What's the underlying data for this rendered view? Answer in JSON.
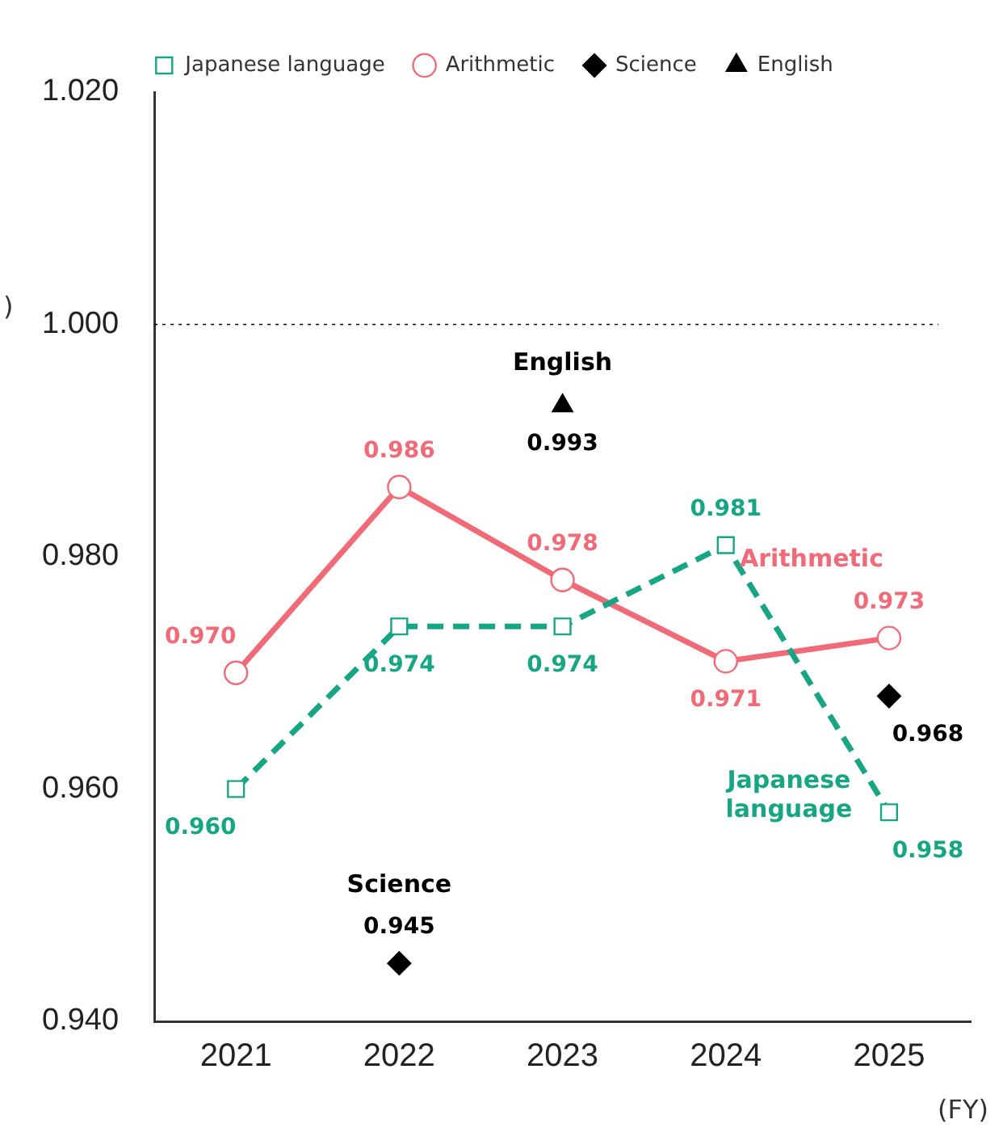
{
  "chart_data": {
    "type": "line",
    "xlabel": "(FY)",
    "ylabel": ")",
    "categories": [
      "2021",
      "2022",
      "2023",
      "2024",
      "2025"
    ],
    "series": [
      {
        "name": "Japanese language",
        "color": "#17a683",
        "marker": "square",
        "line_style": "dashed",
        "values": [
          0.96,
          0.974,
          0.974,
          0.981,
          0.958
        ],
        "value_labels": [
          "0.960",
          "0.974",
          "0.974",
          "0.981",
          "0.958"
        ]
      },
      {
        "name": "Arithmetic",
        "color": "#f06a78",
        "marker": "circle",
        "line_style": "solid",
        "values": [
          0.97,
          0.986,
          0.978,
          0.971,
          0.973
        ],
        "value_labels": [
          "0.970",
          "0.986",
          "0.978",
          "0.971",
          "0.973"
        ]
      },
      {
        "name": "Science",
        "color": "#000000",
        "type": "scatter",
        "marker": "diamond",
        "values": [
          null,
          0.945,
          null,
          null,
          0.968
        ],
        "value_labels": [
          null,
          "0.945",
          null,
          null,
          "0.968"
        ]
      },
      {
        "name": "English",
        "color": "#000000",
        "type": "scatter",
        "marker": "triangle",
        "values": [
          null,
          null,
          0.993,
          null,
          null
        ],
        "value_labels": [
          null,
          null,
          "0.993",
          null,
          null
        ]
      }
    ],
    "ylim": [
      0.94,
      1.02
    ],
    "yticks": [
      {
        "value": 0.94,
        "label": "0.940"
      },
      {
        "value": 0.96,
        "label": "0.960"
      },
      {
        "value": 0.98,
        "label": "0.980"
      },
      {
        "value": 1.0,
        "label": "1.000"
      },
      {
        "value": 1.02,
        "label": "1.020"
      }
    ],
    "grid": false,
    "legend": "top",
    "ref_lines": [
      {
        "axis": "y",
        "value": 1.0,
        "color": "#000000",
        "line_style": "dotted"
      }
    ],
    "annotations": [
      {
        "text": "English",
        "x": "2023",
        "y": 0.993
      },
      {
        "text": "Science",
        "x": "2022",
        "y": 0.945
      },
      {
        "text": "Arithmetic",
        "x": "2025",
        "y": 0.973
      },
      {
        "text": "Japanese language",
        "x": "2025",
        "y": 0.958
      }
    ]
  }
}
